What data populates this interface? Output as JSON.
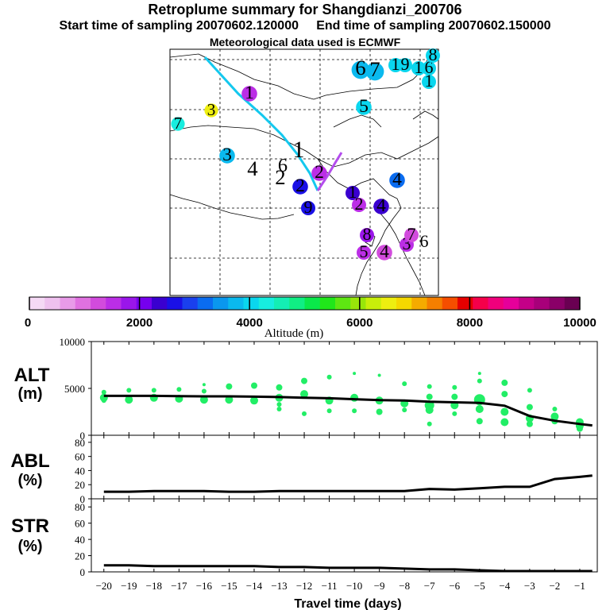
{
  "header": {
    "title": "Retroplume summary for Shangdianzi_200706",
    "start_label": "Start time of sampling 20070602.120000",
    "end_label": "End time of sampling 20070602.150000",
    "met_label": "Meteorological data used is ECMWF"
  },
  "colors": {
    "scale": [
      "#f5d9f5",
      "#efc1ef",
      "#e89be8",
      "#e071e0",
      "#d24bdd",
      "#bb2ee6",
      "#9a16ea",
      "#7600ee",
      "#3a00d0",
      "#1a10e6",
      "#1a40ee",
      "#0a6cf0",
      "#0a97ee",
      "#0ab9ee",
      "#0ad6ee",
      "#17eddf",
      "#14eeb4",
      "#10ee84",
      "#0ae84a",
      "#20e61a",
      "#5ee612",
      "#98e60a",
      "#c8ee0a",
      "#eeee10",
      "#f5d800",
      "#f5ab00",
      "#f57f00",
      "#f54e00",
      "#e60000",
      "#f5004a",
      "#f0007c",
      "#e6009a",
      "#c40088",
      "#a8007a",
      "#8a0068",
      "#6a0052"
    ],
    "trajectory_blue": "#14c8ee",
    "trajectory_violet": "#b44cee",
    "alt_points": "#22ee66"
  },
  "colorbar": {
    "tick_labels": [
      "0",
      "2000",
      "4000",
      "6000",
      "8000",
      "10000"
    ],
    "axis_title": "Altitude (m)"
  },
  "map": {
    "markers": [
      {
        "label": "6",
        "c": 13,
        "v": 0.3,
        "size": 1.6
      },
      {
        "label": "7",
        "c": 13,
        "v": 0.7,
        "size": 1.6
      },
      {
        "label": "1",
        "c": 14,
        "v": 2.4,
        "size": 1.0
      },
      {
        "label": "9",
        "c": 14,
        "v": 2.8,
        "size": 1.0
      },
      {
        "label": "1",
        "c": 14,
        "v": 3.2,
        "size": 1.0
      },
      {
        "label": "6",
        "c": 14,
        "v": 3.6,
        "size": 1.0
      },
      {
        "label": "8",
        "c": 14,
        "v": 4.0,
        "size": 1.0
      },
      {
        "label": "1",
        "c": 14,
        "v": 4.4,
        "size": 1.0
      },
      {
        "label": "5",
        "c": 14,
        "v": 5.0,
        "size": 1.2
      },
      {
        "label": "3",
        "c": 23,
        "v": 5.5,
        "size": 0.9
      },
      {
        "label": "7",
        "c": 15,
        "v": 6.0,
        "size": 0.9
      },
      {
        "label": "3",
        "c": 13,
        "v": 6.5,
        "size": 1.2
      },
      {
        "label": "4",
        "c": 0,
        "v": 7.0,
        "size": 1.6
      },
      {
        "label": "6",
        "c": 0,
        "v": 7.4,
        "size": 1.3
      },
      {
        "label": "2",
        "c": 0,
        "v": 7.8,
        "size": 1.6
      },
      {
        "label": "1",
        "c": 0,
        "v": 8.2,
        "size": 2.0
      },
      {
        "label": "1",
        "c": 5,
        "v": 8.6,
        "size": 1.2
      },
      {
        "label": "4",
        "c": 11,
        "v": 8.8,
        "size": 1.2
      },
      {
        "label": "2",
        "c": 9,
        "v": 9.0,
        "size": 1.2
      },
      {
        "label": "2",
        "c": 5,
        "v": 9.2,
        "size": 1.2
      },
      {
        "label": "1",
        "c": 8,
        "v": 9.3,
        "size": 1.0
      },
      {
        "label": "2",
        "c": 5,
        "v": 9.4,
        "size": 1.0
      },
      {
        "label": "9",
        "c": 9,
        "v": 9.5,
        "size": 1.0
      },
      {
        "label": "4",
        "c": 8,
        "v": 9.6,
        "size": 1.2
      },
      {
        "label": "8",
        "c": 6,
        "v": 9.7,
        "size": 1.0
      },
      {
        "label": "5",
        "c": 5,
        "v": 9.8,
        "size": 1.0
      },
      {
        "label": "4",
        "c": 4,
        "v": 9.85,
        "size": 1.2
      },
      {
        "label": "3",
        "c": 5,
        "v": 9.9,
        "size": 1.0
      },
      {
        "label": "7",
        "c": 4,
        "v": 9.95,
        "size": 1.0
      },
      {
        "label": "6",
        "c": 0,
        "v": 9.98,
        "size": 1.0
      }
    ]
  },
  "panels": {
    "alt_label": "ALT",
    "alt_unit": "(m)",
    "abl_label": "ABL",
    "abl_unit": "(%)",
    "str_label": "STR",
    "str_unit": "(%)",
    "x_title": "Travel time (days)"
  },
  "chart_data": [
    {
      "type": "line",
      "title": "ALT (m)",
      "xlabel": "Travel time (days)",
      "ylabel": "ALT (m)",
      "xlim": [
        -20,
        -0.5
      ],
      "ylim": [
        0,
        10000
      ],
      "y_ticks": [
        0,
        5000,
        10000
      ],
      "x": [
        -20,
        -19,
        -18,
        -17,
        -16,
        -15,
        -14,
        -13,
        -12,
        -11,
        -10,
        -9,
        -8,
        -7,
        -6,
        -5,
        -4,
        -3,
        -2,
        -1,
        -0.5
      ],
      "series": [
        {
          "name": "median altitude",
          "values": [
            4200,
            4200,
            4200,
            4180,
            4150,
            4150,
            4120,
            4080,
            4000,
            3950,
            3850,
            3750,
            3700,
            3580,
            3520,
            3450,
            3150,
            2050,
            1550,
            1200,
            1050
          ]
        }
      ],
      "scatter": [
        {
          "x": -20,
          "y": 4000,
          "r": 5
        },
        {
          "x": -20,
          "y": 4600,
          "r": 3
        },
        {
          "x": -20,
          "y": 3700,
          "r": 3
        },
        {
          "x": -19,
          "y": 3800,
          "r": 5
        },
        {
          "x": -19,
          "y": 4800,
          "r": 3
        },
        {
          "x": -18,
          "y": 4000,
          "r": 5
        },
        {
          "x": -18,
          "y": 4800,
          "r": 3
        },
        {
          "x": -17,
          "y": 3900,
          "r": 5
        },
        {
          "x": -17,
          "y": 4900,
          "r": 3
        },
        {
          "x": -16,
          "y": 3800,
          "r": 5
        },
        {
          "x": -16,
          "y": 4700,
          "r": 3
        },
        {
          "x": -16,
          "y": 5400,
          "r": 2
        },
        {
          "x": -15,
          "y": 3800,
          "r": 5
        },
        {
          "x": -15,
          "y": 5200,
          "r": 4
        },
        {
          "x": -14,
          "y": 3700,
          "r": 5
        },
        {
          "x": -14,
          "y": 5300,
          "r": 4
        },
        {
          "x": -13,
          "y": 4000,
          "r": 5
        },
        {
          "x": -13,
          "y": 5100,
          "r": 4
        },
        {
          "x": -13,
          "y": 2800,
          "r": 3
        },
        {
          "x": -13,
          "y": 3300,
          "r": 3
        },
        {
          "x": -12,
          "y": 4400,
          "r": 5
        },
        {
          "x": -12,
          "y": 5800,
          "r": 4
        },
        {
          "x": -12,
          "y": 2300,
          "r": 3
        },
        {
          "x": -11,
          "y": 3700,
          "r": 5
        },
        {
          "x": -11,
          "y": 6200,
          "r": 3
        },
        {
          "x": -11,
          "y": 2600,
          "r": 3
        },
        {
          "x": -10,
          "y": 4000,
          "r": 5
        },
        {
          "x": -10,
          "y": 6600,
          "r": 2
        },
        {
          "x": -10,
          "y": 2600,
          "r": 3
        },
        {
          "x": -9,
          "y": 3700,
          "r": 5
        },
        {
          "x": -9,
          "y": 6400,
          "r": 2
        },
        {
          "x": -9,
          "y": 2500,
          "r": 4
        },
        {
          "x": -8,
          "y": 3400,
          "r": 5
        },
        {
          "x": -8,
          "y": 5500,
          "r": 3
        },
        {
          "x": -8,
          "y": 2700,
          "r": 3
        },
        {
          "x": -7,
          "y": 3200,
          "r": 6
        },
        {
          "x": -7,
          "y": 4100,
          "r": 4
        },
        {
          "x": -7,
          "y": 2700,
          "r": 5
        },
        {
          "x": -7,
          "y": 1200,
          "r": 3
        },
        {
          "x": -7,
          "y": 5200,
          "r": 3
        },
        {
          "x": -6,
          "y": 3200,
          "r": 5
        },
        {
          "x": -6,
          "y": 4100,
          "r": 4
        },
        {
          "x": -6,
          "y": 2300,
          "r": 3
        },
        {
          "x": -6,
          "y": 5100,
          "r": 3
        },
        {
          "x": -5,
          "y": 3800,
          "r": 7
        },
        {
          "x": -5,
          "y": 2800,
          "r": 5
        },
        {
          "x": -5,
          "y": 1500,
          "r": 4
        },
        {
          "x": -5,
          "y": 5800,
          "r": 3
        },
        {
          "x": -5,
          "y": 6600,
          "r": 2
        },
        {
          "x": -4,
          "y": 2500,
          "r": 5
        },
        {
          "x": -4,
          "y": 1400,
          "r": 5
        },
        {
          "x": -4,
          "y": 5600,
          "r": 4
        },
        {
          "x": -4,
          "y": 4400,
          "r": 4
        },
        {
          "x": -3,
          "y": 1800,
          "r": 5
        },
        {
          "x": -3,
          "y": 1200,
          "r": 4
        },
        {
          "x": -3,
          "y": 3000,
          "r": 4
        },
        {
          "x": -3,
          "y": 4800,
          "r": 3
        },
        {
          "x": -2,
          "y": 2000,
          "r": 5
        },
        {
          "x": -2,
          "y": 1500,
          "r": 4
        },
        {
          "x": -2,
          "y": 2800,
          "r": 3
        },
        {
          "x": -1,
          "y": 1000,
          "r": 5
        },
        {
          "x": -1,
          "y": 1400,
          "r": 5
        },
        {
          "x": -1,
          "y": 700,
          "r": 4
        }
      ]
    },
    {
      "type": "line",
      "title": "ABL (%)",
      "xlabel": "Travel time (days)",
      "ylabel": "ABL (%)",
      "xlim": [
        -20,
        -0.5
      ],
      "ylim": [
        0,
        90
      ],
      "y_ticks": [
        0,
        20,
        40,
        60,
        80
      ],
      "x": [
        -20,
        -19,
        -18,
        -17,
        -16,
        -15,
        -14,
        -13,
        -12,
        -11,
        -10,
        -9,
        -8,
        -7,
        -6,
        -5,
        -4,
        -3,
        -2,
        -1,
        -0.5
      ],
      "series": [
        {
          "name": "ABL fraction",
          "values": [
            10,
            10,
            11,
            11,
            11,
            10,
            10,
            11,
            11,
            11,
            11,
            11,
            11,
            14,
            13,
            15,
            17,
            17,
            28,
            31,
            33
          ]
        }
      ]
    },
    {
      "type": "line",
      "title": "STR (%)",
      "xlabel": "Travel time (days)",
      "ylabel": "STR (%)",
      "xlim": [
        -20,
        -0.5
      ],
      "ylim": [
        0,
        90
      ],
      "y_ticks": [
        0,
        20,
        40,
        60,
        80
      ],
      "x": [
        -20,
        -19,
        -18,
        -17,
        -16,
        -15,
        -14,
        -13,
        -12,
        -11,
        -10,
        -9,
        -8,
        -7,
        -6,
        -5,
        -4,
        -3,
        -2,
        -1,
        -0.5
      ],
      "series": [
        {
          "name": "stratospheric fraction",
          "values": [
            8,
            8,
            7,
            7,
            7,
            7,
            7,
            6,
            6,
            5,
            5,
            5,
            4,
            3,
            3,
            2,
            1,
            1,
            1,
            1,
            1
          ]
        }
      ],
      "x_tick_labels": [
        "-20",
        "-19",
        "-18",
        "-17",
        "-16",
        "-15",
        "-14",
        "-13",
        "-12",
        "-11",
        "-10",
        "-9",
        "-8",
        "-7",
        "-6",
        "-5",
        "-4",
        "-3",
        "-2",
        "-1"
      ]
    }
  ]
}
